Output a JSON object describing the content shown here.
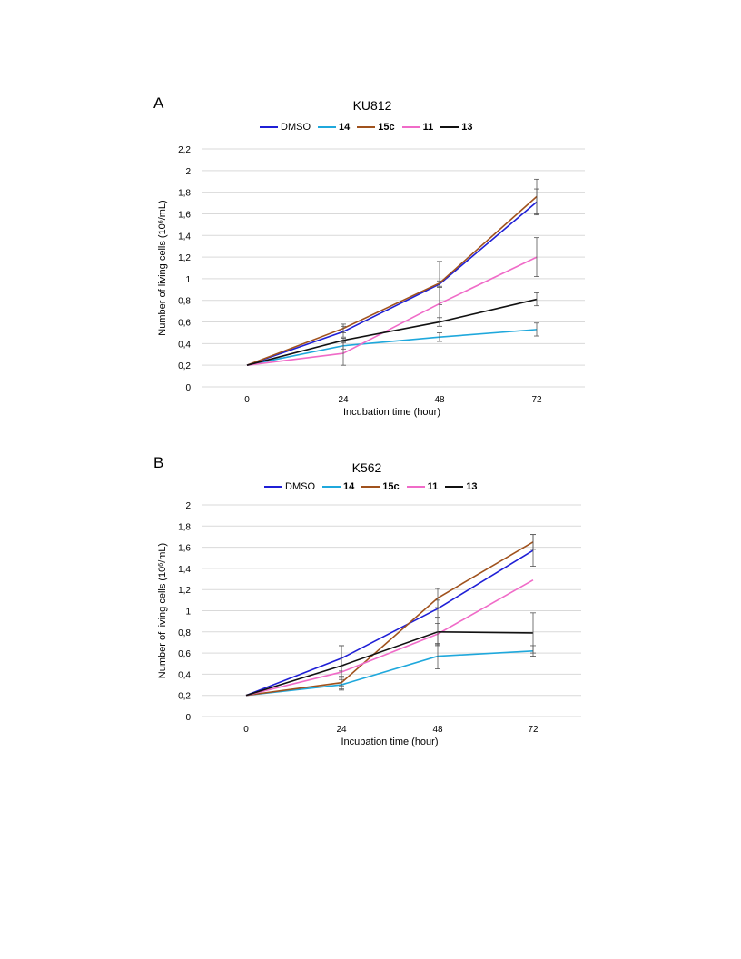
{
  "chart_data": [
    {
      "type": "line",
      "panel_label": "A",
      "title": "KU812",
      "xlabel": "Incubation time (hour)",
      "ylabel_prefix": "Number of living cells (10",
      "ylabel_sup": "6",
      "ylabel_suffix": "/mL)",
      "categories": [
        "0",
        "24",
        "48",
        "72"
      ],
      "x": [
        0,
        24,
        48,
        72
      ],
      "ylim": [
        0,
        2.2
      ],
      "yticks": [
        "0",
        "0,2",
        "0,4",
        "0,6",
        "0,8",
        "1",
        "1,2",
        "1,4",
        "1,6",
        "1,8",
        "2",
        "2,2"
      ],
      "grid": true,
      "legend_position": "top",
      "series": [
        {
          "name": "DMSO",
          "bold": false,
          "color": "#1f1fd6",
          "values": [
            0.2,
            0.51,
            0.95,
            1.71
          ],
          "errors": [
            0,
            0.05,
            0.03,
            0.12
          ]
        },
        {
          "name": "14",
          "bold": true,
          "color": "#1fa8dc",
          "values": [
            0.2,
            0.38,
            0.46,
            0.53
          ],
          "errors": [
            0,
            0.03,
            0.04,
            0.06
          ]
        },
        {
          "name": "15c",
          "bold": true,
          "color": "#a0521d",
          "values": [
            0.2,
            0.54,
            0.96,
            1.76
          ],
          "errors": [
            0,
            0.04,
            0.2,
            0.16
          ]
        },
        {
          "name": "11",
          "bold": true,
          "color": "#f06bc8",
          "values": [
            0.2,
            0.31,
            0.77,
            1.2
          ],
          "errors": [
            0,
            0.11,
            0.16,
            0.18
          ]
        },
        {
          "name": "13",
          "bold": true,
          "color": "#111111",
          "values": [
            0.2,
            0.43,
            0.6,
            0.81
          ],
          "errors": [
            0,
            0.02,
            0.04,
            0.06
          ]
        }
      ]
    },
    {
      "type": "line",
      "panel_label": "B",
      "title": "K562",
      "xlabel": "Incubation time (hour)",
      "ylabel_prefix": "Number of living cells (10",
      "ylabel_sup": "6",
      "ylabel_suffix": "/mL)",
      "categories": [
        "0",
        "24",
        "48",
        "72"
      ],
      "x": [
        0,
        24,
        48,
        72
      ],
      "ylim": [
        0,
        2
      ],
      "yticks": [
        "0",
        "0,2",
        "0,4",
        "0,6",
        "0,8",
        "1",
        "1,2",
        "1,4",
        "1,6",
        "1,8",
        "2"
      ],
      "grid": true,
      "legend_position": "top",
      "series": [
        {
          "name": "DMSO",
          "bold": false,
          "color": "#1f1fd6",
          "values": [
            0.2,
            0.55,
            1.02,
            1.57
          ],
          "errors": [
            0,
            0.12,
            0.08,
            0.15
          ]
        },
        {
          "name": "14",
          "bold": true,
          "color": "#1fa8dc",
          "values": [
            0.2,
            0.3,
            0.57,
            0.62
          ],
          "errors": [
            0,
            0.05,
            0.12,
            0.05
          ]
        },
        {
          "name": "15c",
          "bold": true,
          "color": "#a0521d",
          "values": [
            0.2,
            0.32,
            1.12,
            1.65
          ],
          "errors": [
            0,
            0.06,
            0.09,
            0.07
          ]
        },
        {
          "name": "11",
          "bold": true,
          "color": "#f06bc8",
          "values": [
            0.2,
            0.42,
            0.78,
            1.29
          ],
          "errors": [
            0,
            0.05,
            0.1,
            0.0
          ]
        },
        {
          "name": "13",
          "bold": true,
          "color": "#111111",
          "values": [
            0.2,
            0.48,
            0.8,
            0.79
          ],
          "errors": [
            0,
            0.19,
            0.13,
            0.19
          ]
        }
      ]
    }
  ]
}
